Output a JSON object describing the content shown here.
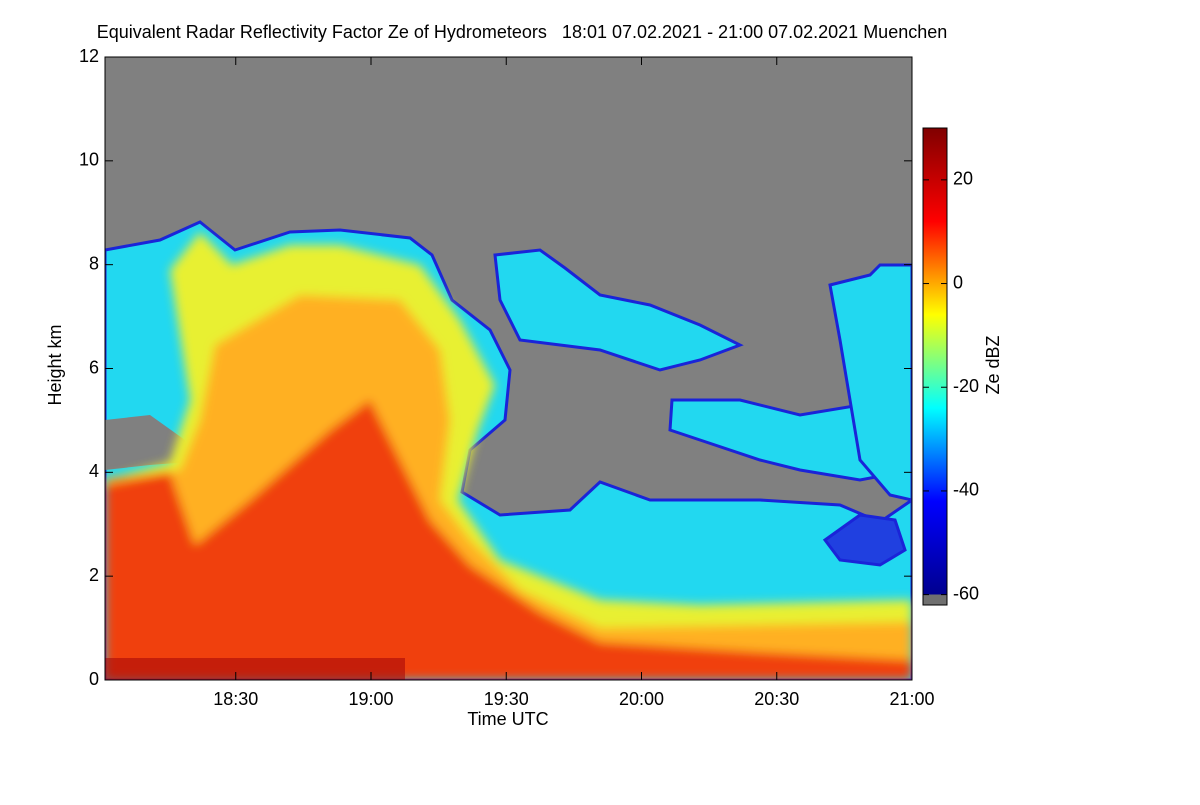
{
  "chart_data": {
    "type": "heatmap",
    "title": "Equivalent Radar Reflectivity Factor Ze of Hydrometeors   18:01 07.02.2021 - 21:00 07.02.2021 Muenchen",
    "x_label": "Time UTC",
    "y_label": "Height km",
    "xlim": [
      1081,
      1260
    ],
    "xticks": [
      {
        "value": 1110,
        "label": "18:30"
      },
      {
        "value": 1140,
        "label": "19:00"
      },
      {
        "value": 1170,
        "label": "19:30"
      },
      {
        "value": 1200,
        "label": "20:00"
      },
      {
        "value": 1230,
        "label": "20:30"
      },
      {
        "value": 1260,
        "label": "21:00"
      }
    ],
    "ylim": [
      0,
      12
    ],
    "yticks": [
      0,
      2,
      4,
      6,
      8,
      10,
      12
    ],
    "colorbar": {
      "label": "Ze dBZ",
      "clim": [
        -62,
        30
      ],
      "ticks": [
        -60,
        -40,
        -20,
        0,
        20
      ],
      "colormap": "jet"
    }
  }
}
